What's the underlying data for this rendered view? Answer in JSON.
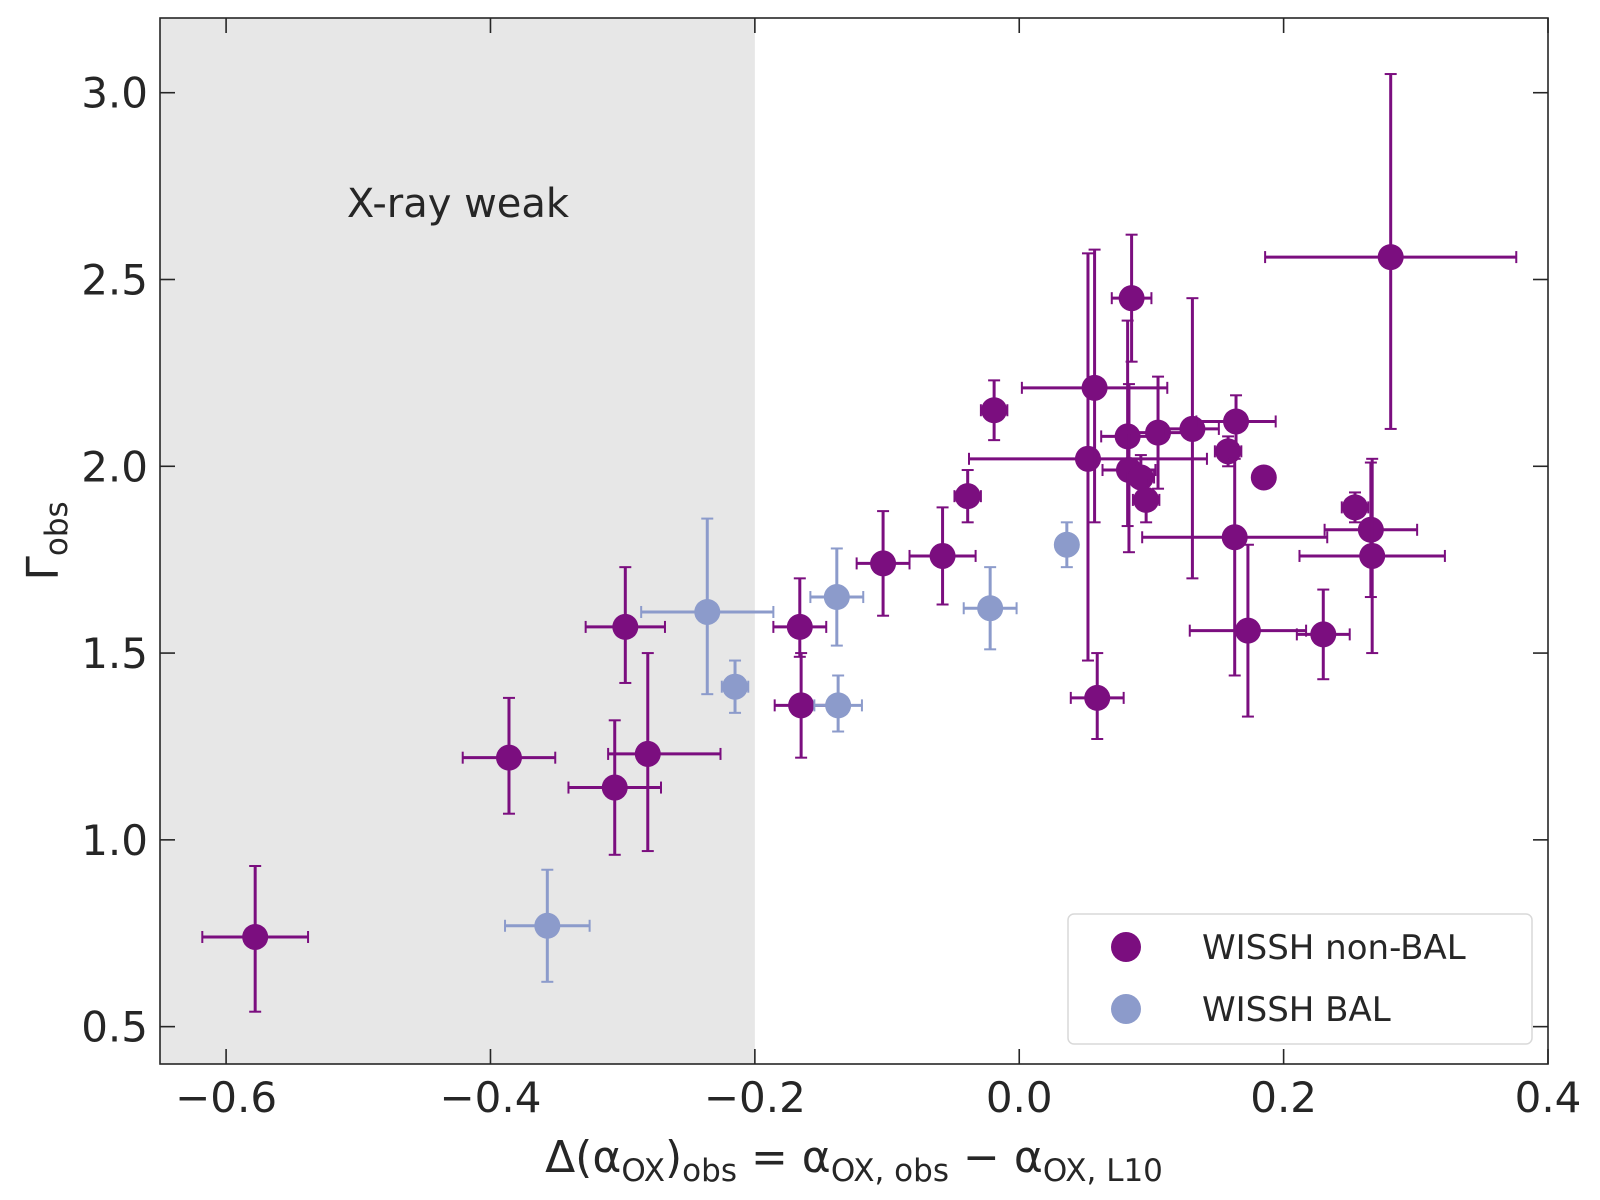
{
  "chart_data": {
    "type": "scatter",
    "title": "",
    "xlabel": {
      "base": "Δ(α",
      "sub1": "OX",
      "mid1": ")",
      "sub2": "obs",
      "eq": " = α",
      "sub3": "OX, obs",
      "minus": " − α",
      "sub4": "OX, L10"
    },
    "ylabel": {
      "base": "Γ",
      "sub": "obs"
    },
    "xlim": [
      -0.65,
      0.4
    ],
    "ylim": [
      0.4,
      3.2
    ],
    "xticks": [
      -0.6,
      -0.4,
      -0.2,
      0.0,
      0.2,
      0.4
    ],
    "xtick_labels": [
      "−0.6",
      "−0.4",
      "−0.2",
      "0.0",
      "0.2",
      "0.4"
    ],
    "yticks": [
      0.5,
      1.0,
      1.5,
      2.0,
      2.5,
      3.0
    ],
    "ytick_labels": [
      "0.5",
      "1.0",
      "1.5",
      "2.0",
      "2.5",
      "3.0"
    ],
    "shaded_region": {
      "x_from": -0.65,
      "x_to": -0.2,
      "label": "X-ray weak",
      "color": "#e7e7e7"
    },
    "legend_position": "lower-right",
    "series": [
      {
        "name": "WISSH non-BAL",
        "color": "#7b0e7f",
        "points": [
          {
            "x": -0.578,
            "y": 0.74,
            "xerr": [
              0.04,
              0.04
            ],
            "yerr": [
              0.2,
              0.19
            ]
          },
          {
            "x": -0.386,
            "y": 1.22,
            "xerr": [
              0.035,
              0.035
            ],
            "yerr": [
              0.15,
              0.16
            ]
          },
          {
            "x": -0.306,
            "y": 1.14,
            "xerr": [
              0.035,
              0.035
            ],
            "yerr": [
              0.18,
              0.18
            ]
          },
          {
            "x": -0.298,
            "y": 1.57,
            "xerr": [
              0.03,
              0.03
            ],
            "yerr": [
              0.15,
              0.16
            ]
          },
          {
            "x": -0.281,
            "y": 1.23,
            "xerr": [
              0.03,
              0.055
            ],
            "yerr": [
              0.26,
              0.27
            ]
          },
          {
            "x": -0.166,
            "y": 1.57,
            "xerr": [
              0.02,
              0.02
            ],
            "yerr": [
              0.08,
              0.13
            ]
          },
          {
            "x": -0.165,
            "y": 1.36,
            "xerr": [
              0.02,
              0.02
            ],
            "yerr": [
              0.14,
              0.14
            ]
          },
          {
            "x": -0.103,
            "y": 1.74,
            "xerr": [
              0.02,
              0.02
            ],
            "yerr": [
              0.14,
              0.14
            ]
          },
          {
            "x": -0.058,
            "y": 1.76,
            "xerr": [
              0.025,
              0.025
            ],
            "yerr": [
              0.13,
              0.13
            ]
          },
          {
            "x": -0.039,
            "y": 1.92,
            "xerr": [
              0.01,
              0.01
            ],
            "yerr": [
              0.07,
              0.07
            ]
          },
          {
            "x": -0.019,
            "y": 2.15,
            "xerr": [
              0.01,
              0.01
            ],
            "yerr": [
              0.08,
              0.08
            ]
          },
          {
            "x": 0.052,
            "y": 2.02,
            "xerr": [
              0.09,
              0.09
            ],
            "yerr": [
              0.54,
              0.55
            ]
          },
          {
            "x": 0.057,
            "y": 2.21,
            "xerr": [
              0.055,
              0.055
            ],
            "yerr": [
              0.36,
              0.37
            ]
          },
          {
            "x": 0.059,
            "y": 1.38,
            "xerr": [
              0.02,
              0.02
            ],
            "yerr": [
              0.11,
              0.12
            ]
          },
          {
            "x": 0.082,
            "y": 2.08,
            "xerr": [
              0.02,
              0.02
            ],
            "yerr": [
              0.24,
              0.31
            ]
          },
          {
            "x": 0.083,
            "y": 1.99,
            "xerr": [
              0.02,
              0.02
            ],
            "yerr": [
              0.22,
              0.23
            ]
          },
          {
            "x": 0.085,
            "y": 2.45,
            "xerr": [
              0.015,
              0.015
            ],
            "yerr": [
              0.17,
              0.17
            ]
          },
          {
            "x": 0.092,
            "y": 1.97,
            "xerr": [
              0.01,
              0.01
            ],
            "yerr": [
              0.06,
              0.06
            ]
          },
          {
            "x": 0.096,
            "y": 1.91,
            "xerr": [
              0.01,
              0.01
            ],
            "yerr": [
              0.06,
              0.06
            ]
          },
          {
            "x": 0.105,
            "y": 2.09,
            "xerr": [
              0.025,
              0.025
            ],
            "yerr": [
              0.15,
              0.15
            ]
          },
          {
            "x": 0.131,
            "y": 2.1,
            "xerr": [
              0.02,
              0.02
            ],
            "yerr": [
              0.4,
              0.35
            ]
          },
          {
            "x": 0.158,
            "y": 2.04,
            "xerr": [
              0.01,
              0.01
            ],
            "yerr": [
              0.04,
              0.04
            ]
          },
          {
            "x": 0.163,
            "y": 1.81,
            "xerr": [
              0.07,
              0.07
            ],
            "yerr": [
              0.37,
              0.21
            ]
          },
          {
            "x": 0.164,
            "y": 2.12,
            "xerr": [
              0.03,
              0.03
            ],
            "yerr": [
              0.07,
              0.07
            ]
          },
          {
            "x": 0.173,
            "y": 1.56,
            "xerr": [
              0.044,
              0.044
            ],
            "yerr": [
              0.23,
              0.23
            ]
          },
          {
            "x": 0.185,
            "y": 1.97,
            "xerr": [
              0,
              0
            ],
            "yerr": [
              0,
              0
            ]
          },
          {
            "x": 0.23,
            "y": 1.55,
            "xerr": [
              0.02,
              0.02
            ],
            "yerr": [
              0.12,
              0.12
            ]
          },
          {
            "x": 0.254,
            "y": 1.89,
            "xerr": [
              0.01,
              0.01
            ],
            "yerr": [
              0.04,
              0.04
            ]
          },
          {
            "x": 0.266,
            "y": 1.83,
            "xerr": [
              0.035,
              0.035
            ],
            "yerr": [
              0.18,
              0.18
            ]
          },
          {
            "x": 0.267,
            "y": 1.76,
            "xerr": [
              0.055,
              0.055
            ],
            "yerr": [
              0.26,
              0.26
            ]
          },
          {
            "x": 0.281,
            "y": 2.56,
            "xerr": [
              0.095,
              0.095
            ],
            "yerr": [
              0.46,
              0.49
            ]
          }
        ]
      },
      {
        "name": "WISSH BAL",
        "color": "#8c9bcb",
        "points": [
          {
            "x": -0.357,
            "y": 0.77,
            "xerr": [
              0.032,
              0.032
            ],
            "yerr": [
              0.15,
              0.15
            ]
          },
          {
            "x": -0.236,
            "y": 1.61,
            "xerr": [
              0.05,
              0.05
            ],
            "yerr": [
              0.22,
              0.25
            ]
          },
          {
            "x": -0.215,
            "y": 1.41,
            "xerr": [
              0.01,
              0.01
            ],
            "yerr": [
              0.07,
              0.07
            ]
          },
          {
            "x": -0.138,
            "y": 1.65,
            "xerr": [
              0.02,
              0.02
            ],
            "yerr": [
              0.13,
              0.13
            ]
          },
          {
            "x": -0.137,
            "y": 1.36,
            "xerr": [
              0.018,
              0.018
            ],
            "yerr": [
              0.07,
              0.08
            ]
          },
          {
            "x": -0.022,
            "y": 1.62,
            "xerr": [
              0.02,
              0.02
            ],
            "yerr": [
              0.11,
              0.11
            ]
          },
          {
            "x": 0.036,
            "y": 1.79,
            "xerr": [
              0.008,
              0.008
            ],
            "yerr": [
              0.06,
              0.06
            ]
          }
        ]
      }
    ]
  }
}
